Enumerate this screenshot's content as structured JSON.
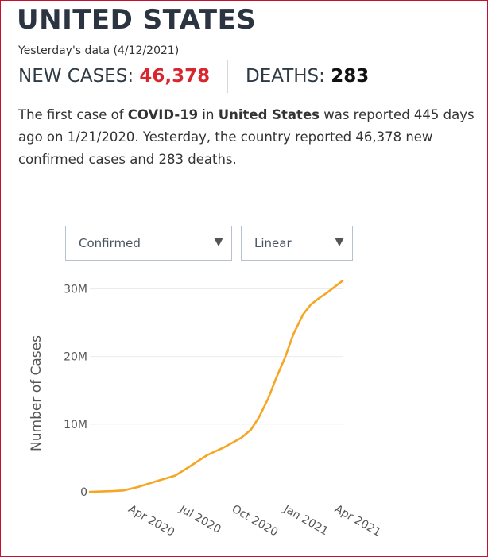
{
  "header": {
    "title": "UNITED STATES",
    "date_label": "Yesterday's data (4/12/2021)"
  },
  "stats": {
    "new_cases_label": "NEW CASES:",
    "new_cases_value": "46,378",
    "deaths_label": "DEATHS:",
    "deaths_value": "283"
  },
  "summary": {
    "p1": "The first case of ",
    "p1_bold": "COVID-19",
    "p2": " in ",
    "p2_bold": "United States",
    "p3": " was reported 445 days ago on 1/21/2020. Yesterday, the country reported 46,378 new confirmed cases and 283 deaths."
  },
  "controls": {
    "metric_selected": "Confirmed",
    "scale_selected": "Linear"
  },
  "colors": {
    "line": "#f5a623",
    "accent_red": "#d8262f",
    "border": "#c8102e"
  },
  "icons": {
    "dropdown_arrow": "triangle-down-icon"
  },
  "chart_data": {
    "type": "line",
    "ylabel": "Number of Cases",
    "xlabel": "",
    "yticks": [
      "0",
      "10M",
      "20M",
      "30M"
    ],
    "ytick_values": [
      0,
      10000000,
      20000000,
      30000000
    ],
    "xticks": [
      "Apr 2020",
      "Jul 2020",
      "Oct 2020",
      "Jan 2021",
      "Apr 2021"
    ],
    "xtick_dates": [
      "2020-04-01",
      "2020-07-01",
      "2020-10-01",
      "2021-01-01",
      "2021-04-01"
    ],
    "xlim": [
      "2020-01-21",
      "2021-04-12"
    ],
    "ylim": [
      0,
      31000000
    ],
    "grid": true,
    "series": [
      {
        "x": [
          "2020-01-21",
          "2020-03-01",
          "2020-03-20",
          "2020-04-15",
          "2020-05-15",
          "2020-06-20",
          "2020-07-15",
          "2020-08-15",
          "2020-09-15",
          "2020-10-15",
          "2020-11-01",
          "2020-11-15",
          "2020-12-01",
          "2020-12-15",
          "2021-01-01",
          "2021-01-15",
          "2021-02-01",
          "2021-02-15",
          "2021-03-01",
          "2021-03-15",
          "2021-04-01",
          "2021-04-12"
        ],
        "y": [
          0,
          100000,
          200000,
          700000,
          1500000,
          2400000,
          3700000,
          5400000,
          6600000,
          8000000,
          9200000,
          11000000,
          13700000,
          16700000,
          20000000,
          23300000,
          26200000,
          27700000,
          28600000,
          29400000,
          30500000,
          31200000
        ]
      }
    ]
  }
}
